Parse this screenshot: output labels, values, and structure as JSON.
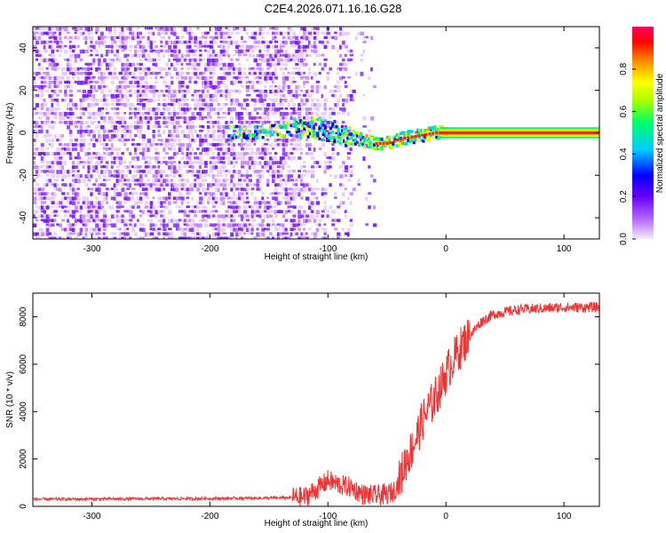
{
  "title": "C2E4.2026.071.16.16.G28",
  "chart_data": [
    {
      "type": "heatmap",
      "xlabel": "Height of straight line (km)",
      "ylabel": "Frequency (Hz)",
      "xlim": [
        -350,
        130
      ],
      "ylim": [
        -50,
        50
      ],
      "xticks": [
        -300,
        -200,
        -100,
        0,
        100
      ],
      "yticks": [
        -40,
        -20,
        0,
        20,
        40
      ],
      "grid": false,
      "colorbar": {
        "label": "Normalized spectral amplitude",
        "range": [
          0,
          1
        ],
        "ticks": [
          "0.0",
          "0.2",
          "0.4",
          "0.6",
          "0.8"
        ],
        "colors": [
          "#e8ccff",
          "#b060ff",
          "#6600ff",
          "#0000ff",
          "#00ccff",
          "#00ff66",
          "#aaff00",
          "#ffff00",
          "#ff8800",
          "#ff0000",
          "#ff0066"
        ]
      },
      "signal_track": {
        "x": [
          -180,
          -160,
          -140,
          -120,
          -100,
          -80,
          -70,
          -60,
          -50,
          -40,
          -30,
          -20,
          -10,
          0,
          130
        ],
        "y": [
          0,
          0,
          1,
          2,
          1,
          -2,
          -4,
          -5,
          -5,
          -3,
          -2,
          -1,
          0,
          0,
          0
        ]
      },
      "noise_cutoff_x": -80
    },
    {
      "type": "line",
      "xlabel": "Height of straight line (km)",
      "ylabel": "SNR (10 * v/v)",
      "xlim": [
        -350,
        130
      ],
      "ylim": [
        0,
        9000
      ],
      "xticks": [
        -300,
        -200,
        -100,
        0,
        100
      ],
      "yticks": [
        0,
        2000,
        4000,
        6000,
        8000
      ],
      "grid": false,
      "series": [
        {
          "color": "#ee3333",
          "x": [
            -350,
            -300,
            -250,
            -200,
            -150,
            -120,
            -110,
            -100,
            -90,
            -80,
            -70,
            -60,
            -50,
            -45,
            -40,
            -35,
            -30,
            -25,
            -20,
            -15,
            -10,
            -5,
            0,
            5,
            10,
            15,
            20,
            25,
            30,
            40,
            50,
            60,
            80,
            100,
            130
          ],
          "y": [
            300,
            310,
            320,
            330,
            350,
            380,
            700,
            1100,
            900,
            800,
            500,
            450,
            500,
            600,
            1000,
            1800,
            2300,
            2900,
            3600,
            4100,
            4500,
            5000,
            5600,
            6100,
            6500,
            6900,
            7200,
            7500,
            7800,
            8100,
            8200,
            8300,
            8350,
            8400,
            8400
          ]
        }
      ]
    }
  ]
}
